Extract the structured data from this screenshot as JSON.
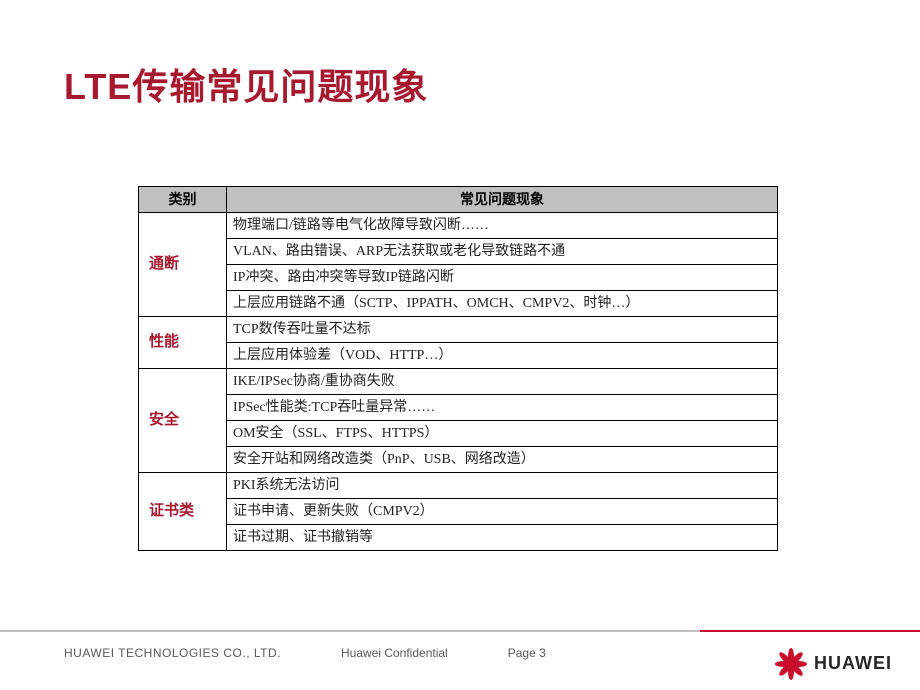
{
  "title": "LTE传输常见问题现象",
  "table": {
    "headers": {
      "category": "类别",
      "issue": "常见问题现象"
    },
    "groups": [
      {
        "category": "通断",
        "rows": [
          "物理端口/链路等电气化故障导致闪断……",
          "VLAN、路由错误、ARP无法获取或老化导致链路不通",
          "IP冲突、路由冲突等导致IP链路闪断",
          "上层应用链路不通（SCTP、IPPATH、OMCH、CMPV2、时钟…）"
        ]
      },
      {
        "category": "性能",
        "rows": [
          "TCP数传吞吐量不达标",
          "上层应用体验差（VOD、HTTP…）"
        ]
      },
      {
        "category": "安全",
        "rows": [
          "IKE/IPSec协商/重协商失败",
          "IPSec性能类:TCP吞吐量异常……",
          "OM安全（SSL、FTPS、HTTPS）",
          "安全开站和网络改造类（PnP、USB、网络改造）"
        ]
      },
      {
        "category": "证书类",
        "rows": [
          "PKI系统无法访问",
          "证书申请、更新失败（CMPV2）",
          "证书过期、证书撤销等"
        ]
      }
    ]
  },
  "footer": {
    "company": "HUAWEI TECHNOLOGIES CO., LTD.",
    "confidential": "Huawei Confidential",
    "page": "Page 3",
    "brand": "HUAWEI"
  },
  "colors": {
    "title": "#a6192e",
    "category": "#a6192e",
    "header_bg": "#c0c0c0",
    "brand_red": "#c8102e",
    "footer_gray": "#bfbfbf",
    "text_gray": "#595959"
  }
}
